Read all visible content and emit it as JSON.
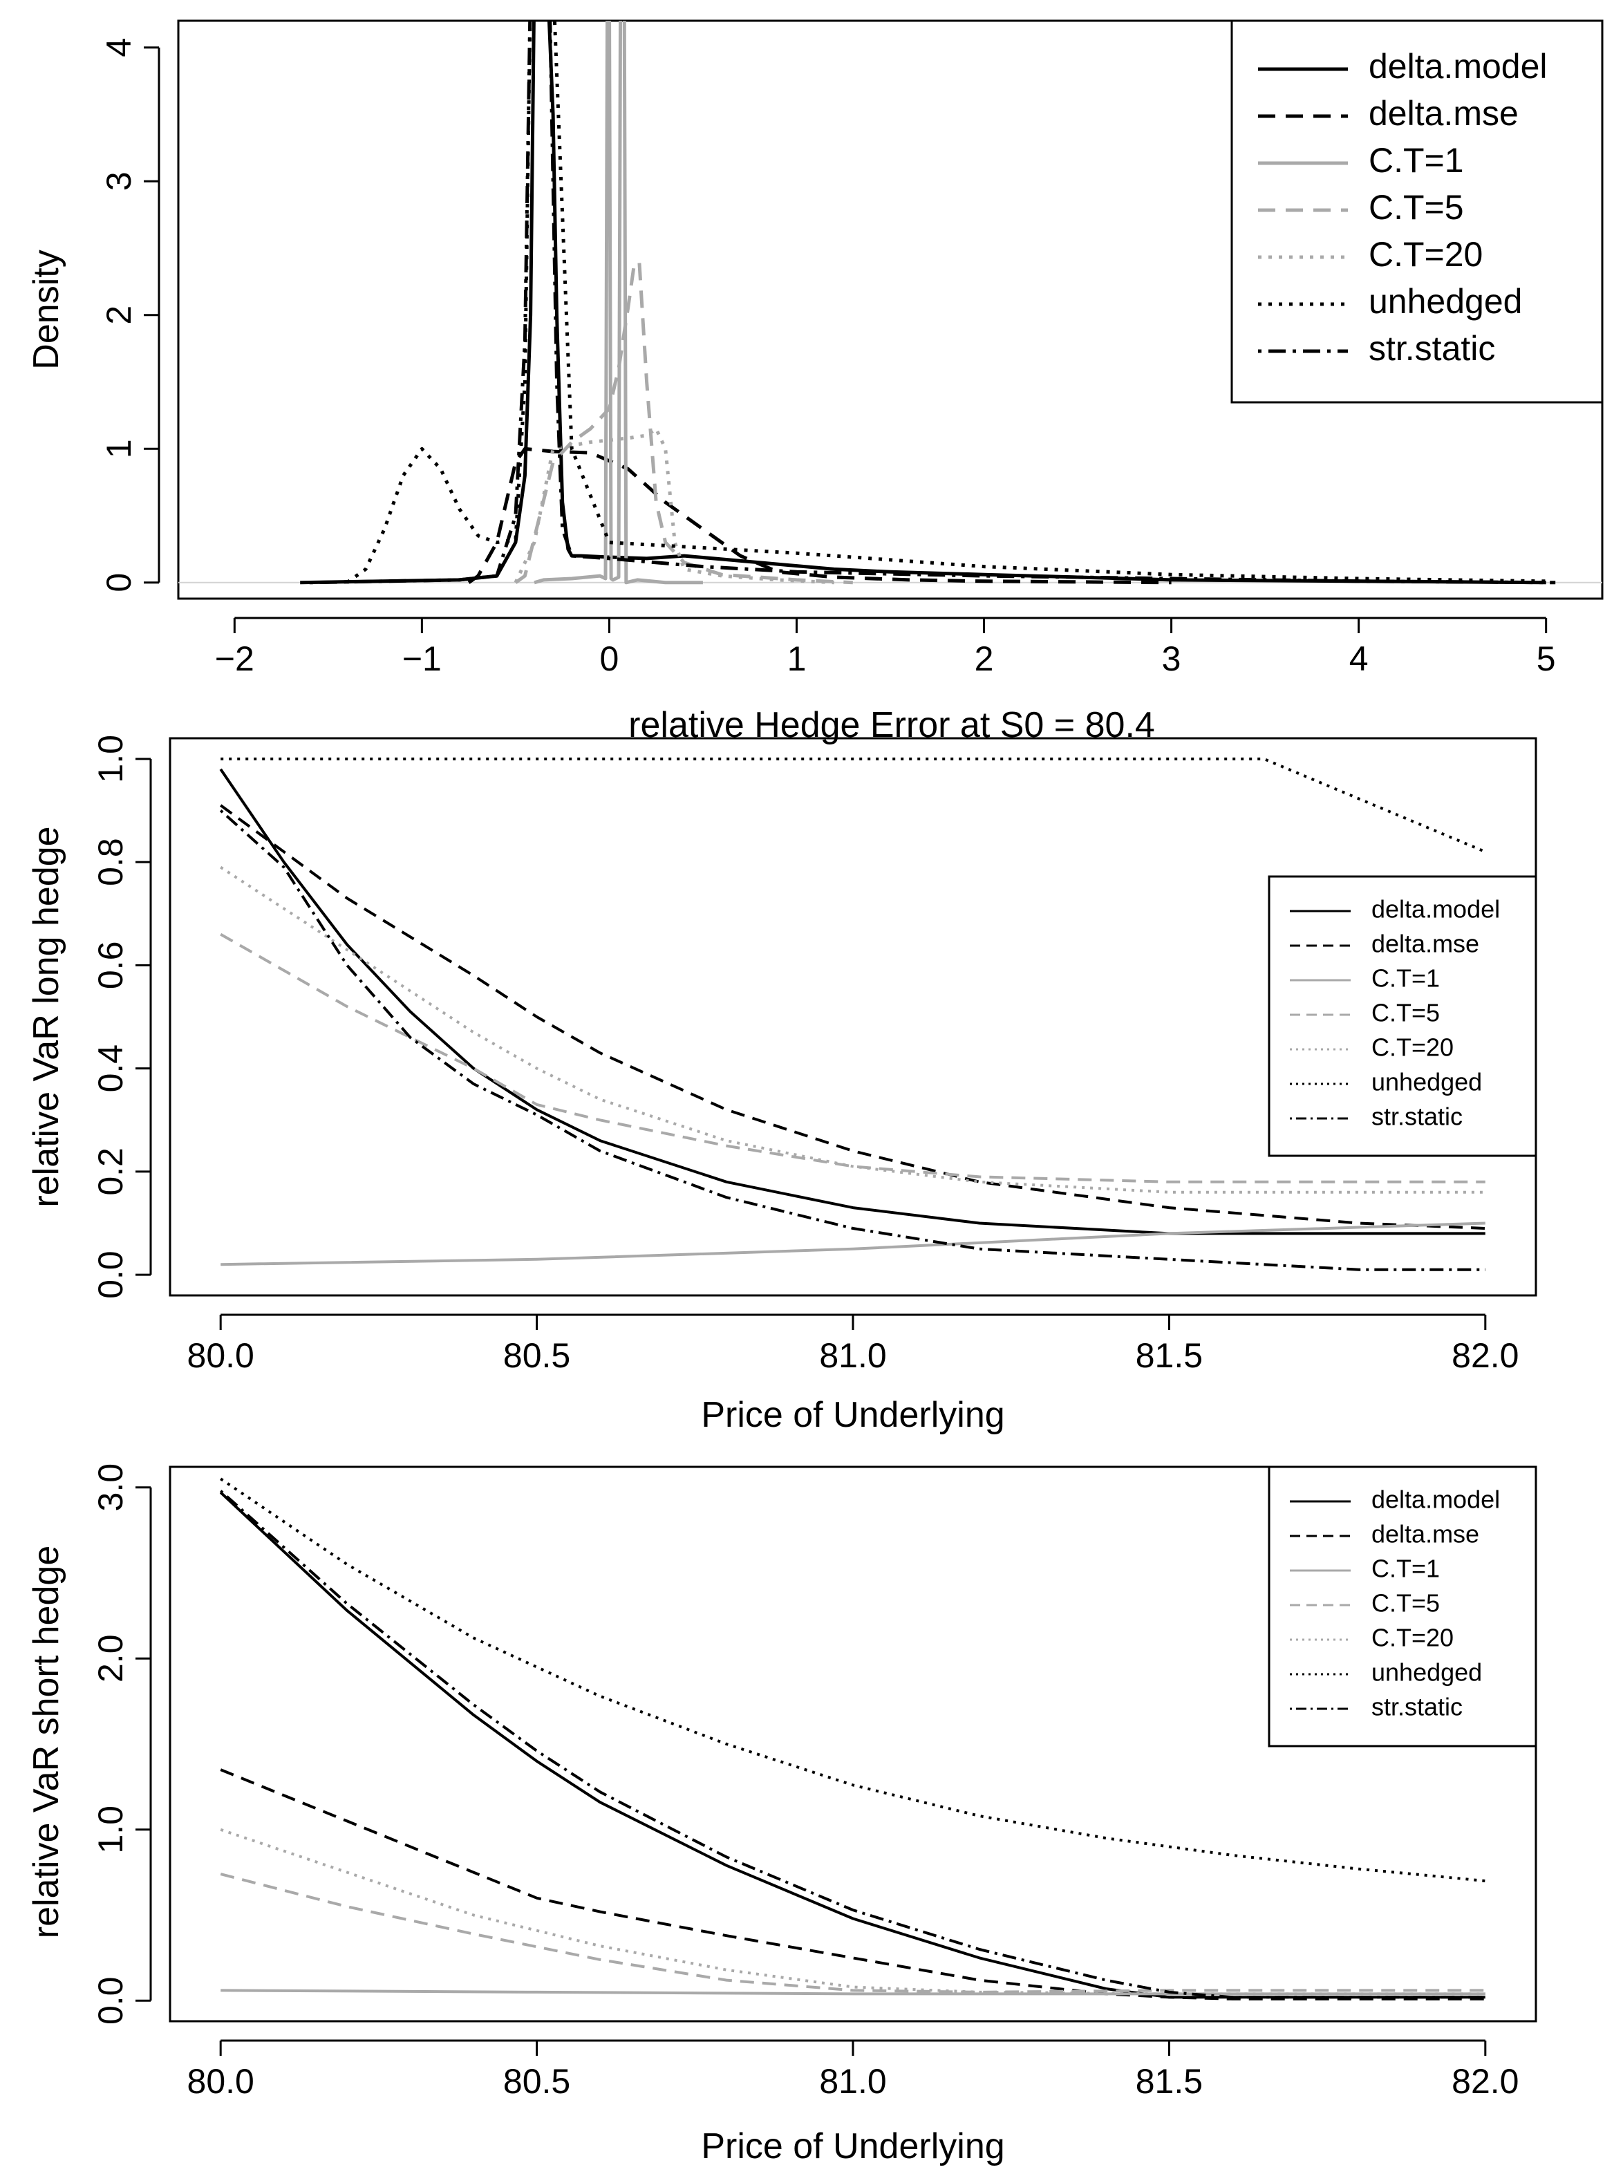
{
  "colors": {
    "black": "#000000",
    "gray": "#a9a9a9",
    "zeroline": "#d3d3d3"
  },
  "legend_entries": [
    {
      "label": "delta.model",
      "color": "#000000",
      "dash": "solid"
    },
    {
      "label": "delta.mse",
      "color": "#000000",
      "dash": "dashed"
    },
    {
      "label": "C.T=1",
      "color": "#a9a9a9",
      "dash": "solid"
    },
    {
      "label": "C.T=5",
      "color": "#a9a9a9",
      "dash": "dashed"
    },
    {
      "label": "C.T=20",
      "color": "#a9a9a9",
      "dash": "dotted"
    },
    {
      "label": "unhedged",
      "color": "#000000",
      "dash": "dotted"
    },
    {
      "label": "str.static",
      "color": "#000000",
      "dash": "dotdash"
    }
  ],
  "chart_data": [
    {
      "type": "line",
      "title": "",
      "xlabel": "relative Hedge Error at S0 = 80.4",
      "ylabel": "Density",
      "xlim": [
        -2.3,
        5.3
      ],
      "ylim": [
        -0.12,
        4.2
      ],
      "xticks": [
        -2,
        -1,
        0,
        1,
        2,
        3,
        4,
        5
      ],
      "xtick_labels": [
        "−2",
        "−1",
        "0",
        "1",
        "2",
        "3",
        "4",
        "5"
      ],
      "yticks": [
        0,
        1,
        2,
        3,
        4
      ],
      "ytick_labels": [
        "0",
        "1",
        "2",
        "3",
        "4"
      ],
      "zero_line": true,
      "legend_position": "top-right",
      "series": [
        {
          "name": "delta.model",
          "x": [
            -1.65,
            -0.8,
            -0.6,
            -0.5,
            -0.45,
            -0.42,
            -0.4,
            -0.38,
            -0.35,
            -0.33,
            -0.3,
            -0.28,
            -0.25,
            -0.22,
            -0.2,
            -0.15,
            0,
            0.2,
            0.4,
            0.8,
            1.2,
            1.5,
            2,
            2.5,
            3,
            4,
            5
          ],
          "values": [
            0,
            0.02,
            0.05,
            0.3,
            0.8,
            2.0,
            4.5,
            4.5,
            4.5,
            4.5,
            3.5,
            2.0,
            0.6,
            0.25,
            0.2,
            0.2,
            0.19,
            0.18,
            0.2,
            0.15,
            0.1,
            0.08,
            0.06,
            0.04,
            0.02,
            0.01,
            0
          ]
        },
        {
          "name": "delta.mse",
          "x": [
            -0.75,
            -0.7,
            -0.6,
            -0.5,
            -0.45,
            -0.3,
            -0.1,
            0.1,
            0.3,
            0.5,
            0.7,
            0.9,
            1.2,
            1.6,
            2,
            2.5,
            3
          ],
          "values": [
            0,
            0.05,
            0.3,
            0.9,
            1.0,
            0.98,
            0.97,
            0.85,
            0.6,
            0.4,
            0.2,
            0.08,
            0.04,
            0.02,
            0.01,
            0.005,
            0
          ]
        },
        {
          "name": "C.T=1",
          "x": [
            -0.4,
            -0.35,
            -0.2,
            -0.05,
            -0.02,
            -0.01,
            0,
            0.01,
            0.02,
            0.05,
            0.06,
            0.07,
            0.08,
            0.09,
            0.15,
            0.3,
            0.5
          ],
          "values": [
            0,
            0.02,
            0.03,
            0.05,
            0.03,
            4.5,
            4.5,
            0.03,
            0.02,
            0.04,
            4.5,
            4.5,
            4.5,
            0.0,
            0.02,
            0.0,
            0
          ]
        },
        {
          "name": "C.T=5",
          "x": [
            -0.5,
            -0.45,
            -0.3,
            -0.2,
            -0.1,
            0,
            0.05,
            0.1,
            0.13,
            0.16,
            0.2,
            0.25,
            0.3,
            0.4,
            0.6,
            0.8,
            1,
            1.3
          ],
          "values": [
            0,
            0.05,
            0.9,
            1.05,
            1.15,
            1.3,
            1.6,
            2.05,
            2.35,
            2.4,
            1.5,
            0.6,
            0.3,
            0.15,
            0.06,
            0.04,
            0.02,
            0
          ]
        },
        {
          "name": "C.T=20",
          "x": [
            -0.5,
            -0.4,
            -0.3,
            -0.1,
            0.1,
            0.2,
            0.25,
            0.3,
            0.35,
            0.4,
            0.6,
            0.9,
            1.2
          ],
          "values": [
            0,
            0.3,
            1.0,
            1.05,
            1.08,
            1.1,
            1.15,
            1.0,
            0.3,
            0.1,
            0.05,
            0.02,
            0
          ]
        },
        {
          "name": "unhedged",
          "x": [
            -1.4,
            -1.3,
            -1.2,
            -1.1,
            -1.0,
            -0.9,
            -0.8,
            -0.7,
            -0.6,
            -0.5,
            -0.45,
            -0.42,
            -0.4,
            -0.3,
            -0.2,
            0,
            1,
            2,
            3,
            4,
            5
          ],
          "values": [
            0,
            0.1,
            0.4,
            0.8,
            1.0,
            0.85,
            0.55,
            0.35,
            0.3,
            0.32,
            1.5,
            4.5,
            4.5,
            4.5,
            1.0,
            0.3,
            0.22,
            0.12,
            0.06,
            0.03,
            0.01
          ]
        },
        {
          "name": "str.static",
          "x": [
            -1.6,
            -0.8,
            -0.6,
            -0.5,
            -0.45,
            -0.42,
            -0.4,
            -0.38,
            -0.35,
            -0.32,
            -0.3,
            -0.28,
            -0.25,
            -0.2,
            0,
            0.5,
            1,
            2,
            3,
            4,
            5.05
          ],
          "values": [
            0,
            0.02,
            0.05,
            0.5,
            1.8,
            4.5,
            4.5,
            4.5,
            4.5,
            4.5,
            3.0,
            1.5,
            0.4,
            0.2,
            0.18,
            0.12,
            0.08,
            0.05,
            0.03,
            0.01,
            0
          ]
        }
      ]
    },
    {
      "type": "line",
      "title": "",
      "xlabel": "Price of Underlying",
      "ylabel": "relative VaR long hedge",
      "xlim": [
        79.92,
        82.08
      ],
      "ylim": [
        -0.04,
        1.04
      ],
      "xticks": [
        80.0,
        80.5,
        81.0,
        81.5,
        82.0
      ],
      "xtick_labels": [
        "80.0",
        "80.5",
        "81.0",
        "81.5",
        "82.0"
      ],
      "yticks": [
        0,
        0.2,
        0.4,
        0.6,
        0.8,
        1.0
      ],
      "ytick_labels": [
        "0.0",
        "0.2",
        "0.4",
        "0.6",
        "0.8",
        "1.0"
      ],
      "zero_line": false,
      "legend_position": "right",
      "series": [
        {
          "name": "delta.model",
          "x": [
            80.0,
            80.1,
            80.2,
            80.3,
            80.4,
            80.5,
            80.6,
            80.8,
            81.0,
            81.2,
            81.5,
            81.8,
            82.0
          ],
          "values": [
            0.98,
            0.8,
            0.64,
            0.51,
            0.4,
            0.32,
            0.26,
            0.18,
            0.13,
            0.1,
            0.08,
            0.08,
            0.08
          ]
        },
        {
          "name": "delta.mse",
          "x": [
            80.0,
            80.2,
            80.4,
            80.5,
            80.6,
            80.8,
            81.0,
            81.2,
            81.5,
            81.8,
            82.0
          ],
          "values": [
            0.91,
            0.73,
            0.58,
            0.5,
            0.43,
            0.32,
            0.24,
            0.18,
            0.13,
            0.1,
            0.09
          ]
        },
        {
          "name": "C.T=1",
          "x": [
            80.0,
            80.5,
            81.0,
            81.5,
            82.0
          ],
          "values": [
            0.02,
            0.03,
            0.05,
            0.08,
            0.1
          ]
        },
        {
          "name": "C.T=5",
          "x": [
            80.0,
            80.2,
            80.4,
            80.5,
            80.6,
            80.8,
            81.0,
            81.2,
            81.5,
            82.0
          ],
          "values": [
            0.66,
            0.52,
            0.4,
            0.33,
            0.3,
            0.25,
            0.21,
            0.19,
            0.18,
            0.18
          ]
        },
        {
          "name": "C.T=20",
          "x": [
            80.0,
            80.2,
            80.4,
            80.5,
            80.6,
            80.8,
            81.0,
            81.2,
            81.5,
            82.0
          ],
          "values": [
            0.79,
            0.63,
            0.47,
            0.4,
            0.34,
            0.26,
            0.21,
            0.18,
            0.16,
            0.16
          ]
        },
        {
          "name": "unhedged",
          "x": [
            80.0,
            81.0,
            81.65,
            82.0
          ],
          "values": [
            1.0,
            1.0,
            1.0,
            0.82
          ]
        },
        {
          "name": "str.static",
          "x": [
            80.0,
            80.1,
            80.2,
            80.3,
            80.4,
            80.5,
            80.6,
            80.8,
            81.0,
            81.2,
            81.5,
            81.8,
            82.0
          ],
          "values": [
            0.9,
            0.79,
            0.6,
            0.46,
            0.37,
            0.31,
            0.24,
            0.15,
            0.09,
            0.05,
            0.03,
            0.01,
            0.01
          ]
        }
      ]
    },
    {
      "type": "line",
      "title": "",
      "xlabel": "Price of Underlying",
      "ylabel": "relative VaR short hedge",
      "xlim": [
        79.92,
        82.08
      ],
      "ylim": [
        -0.12,
        3.12
      ],
      "xticks": [
        80.0,
        80.5,
        81.0,
        81.5,
        82.0
      ],
      "xtick_labels": [
        "80.0",
        "80.5",
        "81.0",
        "81.5",
        "82.0"
      ],
      "yticks": [
        0,
        1,
        2,
        3
      ],
      "ytick_labels": [
        "0.0",
        "1.0",
        "2.0",
        "3.0"
      ],
      "zero_line": false,
      "legend_position": "top-right",
      "series": [
        {
          "name": "delta.model",
          "x": [
            80.0,
            80.2,
            80.4,
            80.5,
            80.6,
            80.8,
            81.0,
            81.2,
            81.4,
            81.5,
            81.6,
            81.8,
            82.0
          ],
          "values": [
            2.97,
            2.28,
            1.67,
            1.4,
            1.16,
            0.79,
            0.48,
            0.25,
            0.07,
            0.02,
            0.02,
            0.02,
            0.02
          ]
        },
        {
          "name": "delta.mse",
          "x": [
            80.0,
            80.2,
            80.4,
            80.5,
            80.6,
            80.8,
            81.0,
            81.2,
            81.4,
            81.5,
            81.6,
            81.8,
            82.0
          ],
          "values": [
            1.35,
            1.05,
            0.75,
            0.6,
            0.52,
            0.38,
            0.25,
            0.12,
            0.04,
            0.02,
            0.01,
            0.01,
            0.01
          ]
        },
        {
          "name": "C.T=1",
          "x": [
            80.0,
            80.5,
            81.0,
            81.5,
            82.0
          ],
          "values": [
            0.06,
            0.05,
            0.04,
            0.04,
            0.04
          ]
        },
        {
          "name": "C.T=5",
          "x": [
            80.0,
            80.2,
            80.4,
            80.6,
            80.8,
            81.0,
            81.2,
            81.5,
            82.0
          ],
          "values": [
            0.74,
            0.55,
            0.39,
            0.24,
            0.12,
            0.06,
            0.05,
            0.06,
            0.06
          ]
        },
        {
          "name": "C.T=20",
          "x": [
            80.0,
            80.2,
            80.4,
            80.6,
            80.8,
            81.0,
            81.2,
            81.5,
            82.0
          ],
          "values": [
            1.0,
            0.75,
            0.5,
            0.32,
            0.18,
            0.08,
            0.05,
            0.04,
            0.04
          ]
        },
        {
          "name": "unhedged",
          "x": [
            80.0,
            80.2,
            80.4,
            80.6,
            80.8,
            81.0,
            81.2,
            81.4,
            81.6,
            81.8,
            82.0
          ],
          "values": [
            3.05,
            2.55,
            2.12,
            1.78,
            1.5,
            1.26,
            1.08,
            0.95,
            0.85,
            0.77,
            0.7
          ]
        },
        {
          "name": "str.static",
          "x": [
            80.0,
            80.2,
            80.4,
            80.5,
            80.6,
            80.8,
            81.0,
            81.2,
            81.4,
            81.5,
            81.6,
            81.8,
            82.0
          ],
          "values": [
            2.98,
            2.32,
            1.73,
            1.46,
            1.22,
            0.84,
            0.53,
            0.3,
            0.12,
            0.05,
            0.02,
            0.02,
            0.02
          ]
        }
      ]
    }
  ]
}
